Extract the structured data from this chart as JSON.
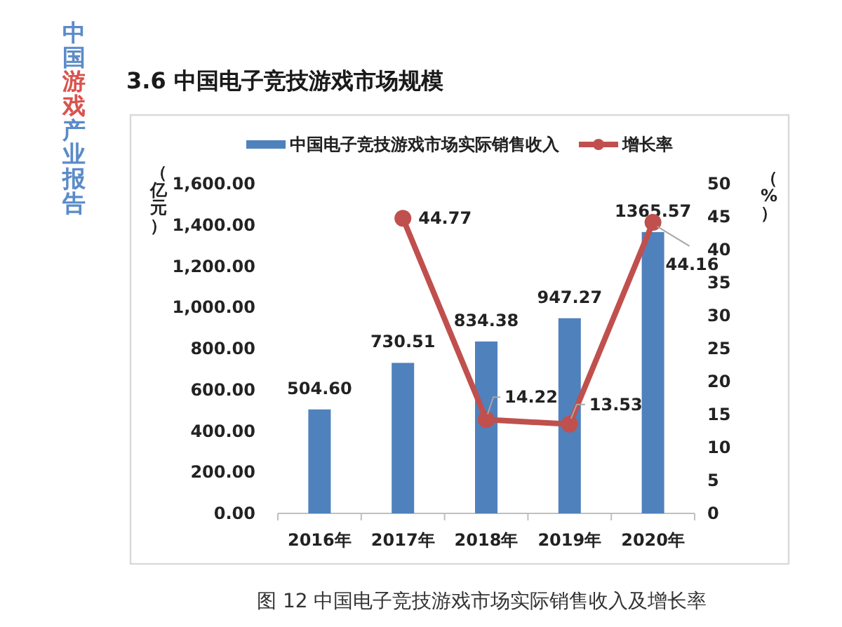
{
  "chart_data": {
    "type": "bar",
    "title": "3.6 中国电子竞技游戏市场规模",
    "ylabel": "（亿元）",
    "y2label": "（%）",
    "categories": [
      "2016年",
      "2017年",
      "2018年",
      "2019年",
      "2020年"
    ],
    "series": [
      {
        "name": "中国电子竞技游戏市场实际销售收入",
        "color": "#4f81bd",
        "values": [
          504.6,
          730.51,
          834.38,
          947.27,
          1365.57
        ],
        "value_labels": [
          "504.60",
          "730.51",
          "834.38",
          "947.27",
          "1365.57"
        ]
      },
      {
        "name": "增长率",
        "type": "line",
        "axis": "y2",
        "color": "#c0504d",
        "values": [
          null,
          44.77,
          14.22,
          13.53,
          44.16
        ],
        "value_labels": [
          null,
          "44.77",
          "14.22",
          "13.53",
          "44.16"
        ]
      }
    ],
    "ylim": [
      0,
      1600
    ],
    "yticks": [
      {
        "value": 0,
        "label": "0.00"
      },
      {
        "value": 200,
        "label": "200.00"
      },
      {
        "value": 400,
        "label": "400.00"
      },
      {
        "value": 600,
        "label": "600.00"
      },
      {
        "value": 800,
        "label": "800.00"
      },
      {
        "value": 1000,
        "label": "1,000.00"
      },
      {
        "value": 1200,
        "label": "1,200.00"
      },
      {
        "value": 1400,
        "label": "1,400.00"
      },
      {
        "value": 1600,
        "label": "1,600.00"
      }
    ],
    "y2lim": [
      0,
      50
    ],
    "y2ticks": [
      0,
      5,
      10,
      15,
      20,
      25,
      30,
      35,
      40,
      45,
      50
    ],
    "legend": "top",
    "marker": "circle",
    "annotations": [
      "中国游戏产业报告",
      "图 12 中国电子竞技游戏市场实际销售收入及增长率"
    ]
  }
}
